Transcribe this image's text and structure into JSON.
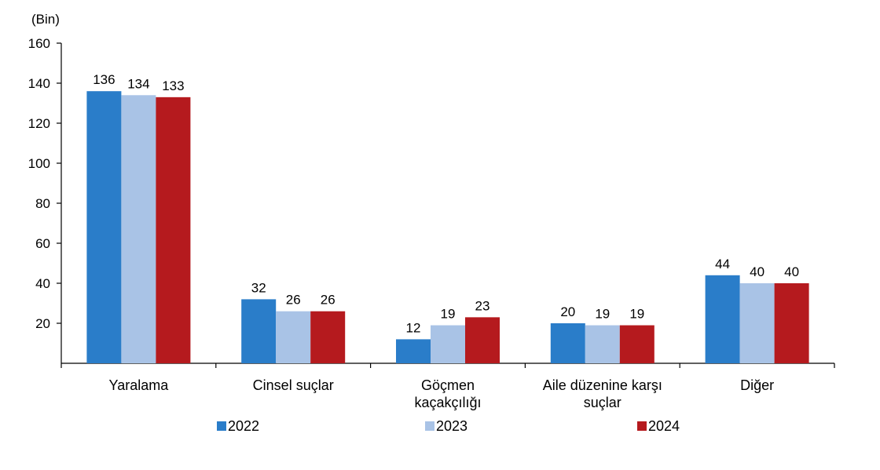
{
  "chart_data": {
    "type": "bar",
    "unit_label": "(Bin)",
    "categories": [
      [
        "Yaralama"
      ],
      [
        "Cinsel suçlar"
      ],
      [
        "Göçmen",
        "kaçakçılığı"
      ],
      [
        "Aile düzenine karşı",
        "suçlar"
      ],
      [
        "Diğer"
      ]
    ],
    "series": [
      {
        "name": "2022",
        "color": "#2a7dc9",
        "values": [
          136,
          32,
          12,
          20,
          44
        ]
      },
      {
        "name": "2023",
        "color": "#a9c3e6",
        "values": [
          134,
          26,
          19,
          19,
          40
        ]
      },
      {
        "name": "2024",
        "color": "#b51a1e",
        "values": [
          133,
          26,
          23,
          19,
          40
        ]
      }
    ],
    "ylim": [
      0,
      160
    ],
    "yticks": [
      20,
      40,
      60,
      80,
      100,
      120,
      140,
      160
    ],
    "grid": false,
    "legend_position": "bottom"
  }
}
